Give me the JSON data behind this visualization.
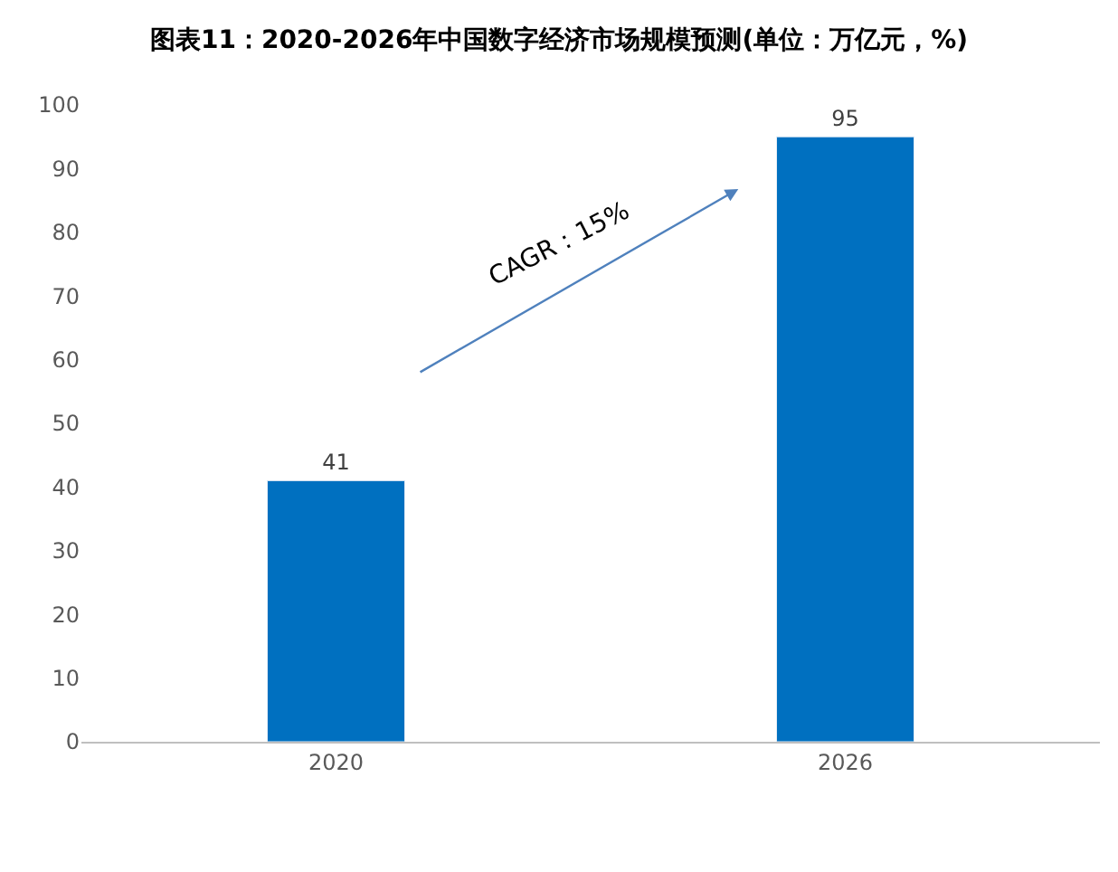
{
  "chart_data": {
    "type": "bar",
    "title": "图表11：2020-2026年中国数字经济市场规模预测(单位：万亿元，%)",
    "categories": [
      "2020",
      "2026"
    ],
    "values": [
      41,
      95
    ],
    "color": "#0070c0",
    "ylim": [
      0,
      100
    ],
    "yticks": [
      0,
      10,
      20,
      30,
      40,
      50,
      60,
      70,
      80,
      90,
      100
    ],
    "data_labels": true,
    "grid": false,
    "annotations": [
      "CAGR：15%"
    ]
  }
}
